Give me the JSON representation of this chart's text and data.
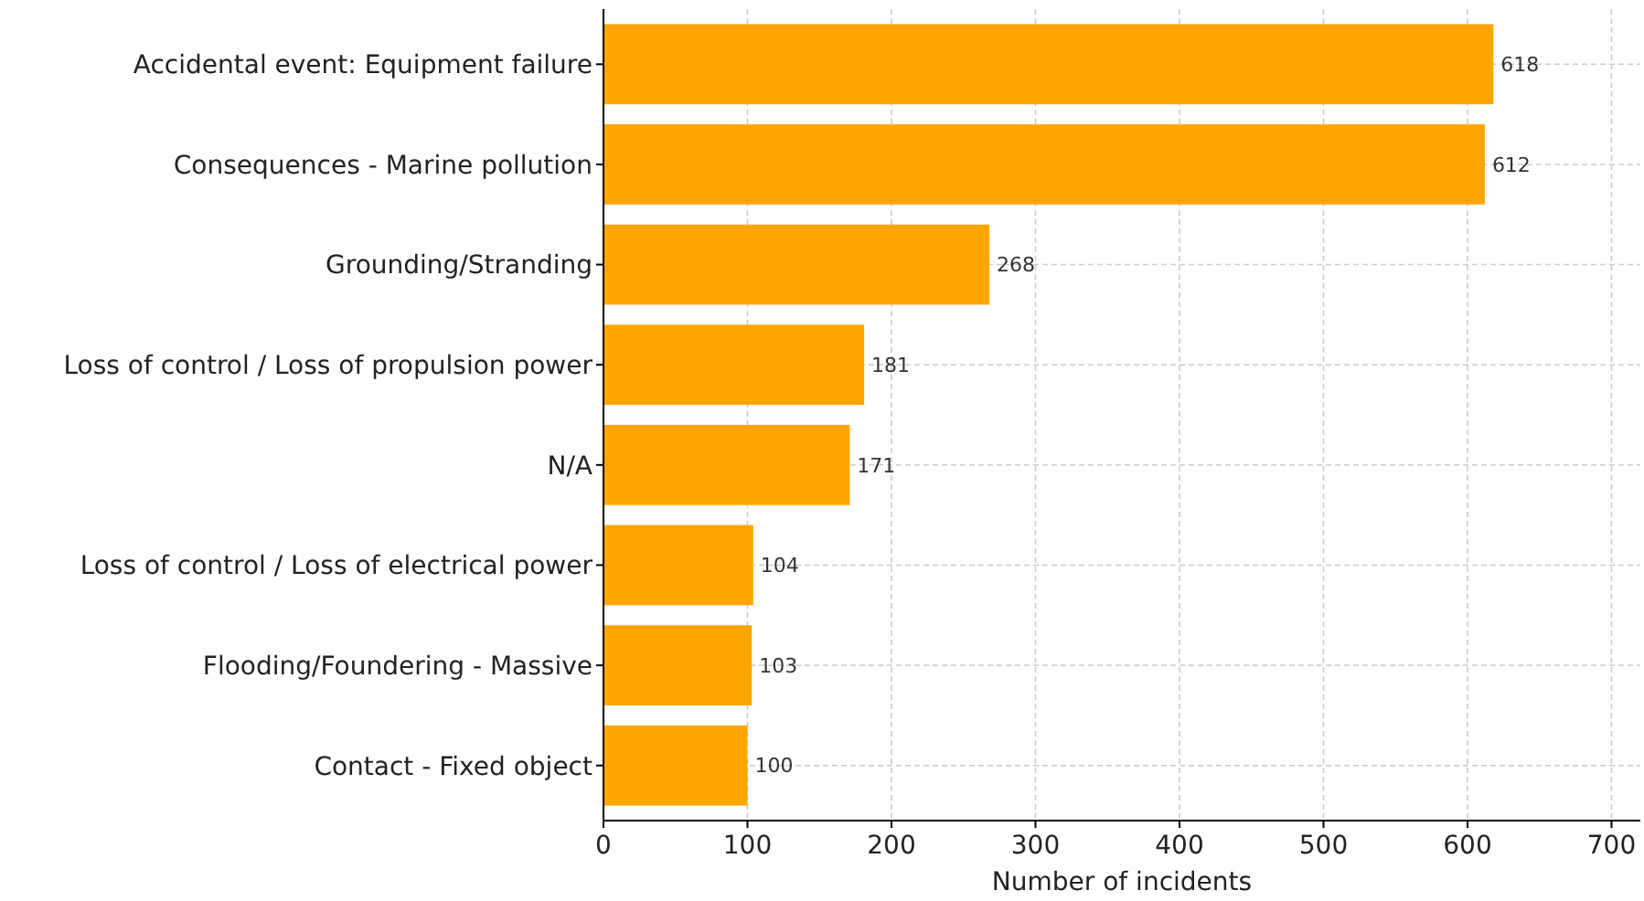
{
  "chart_data": {
    "type": "bar",
    "orientation": "horizontal",
    "categories": [
      "Accidental event: Equipment failure",
      "Consequences - Marine pollution",
      "Grounding/Stranding",
      "Loss of control / Loss of propulsion power",
      "N/A",
      "Loss of control / Loss of electrical power",
      "Flooding/Foundering - Massive",
      "Contact - Fixed object"
    ],
    "values": [
      618,
      612,
      268,
      181,
      171,
      104,
      103,
      100
    ],
    "color": "#ffa500",
    "xlabel": "Number of incidents",
    "xlim": [
      0,
      720
    ],
    "xticks": [
      0,
      100,
      200,
      300,
      400,
      500,
      600,
      700
    ],
    "grid": true,
    "data_labels": true
  }
}
